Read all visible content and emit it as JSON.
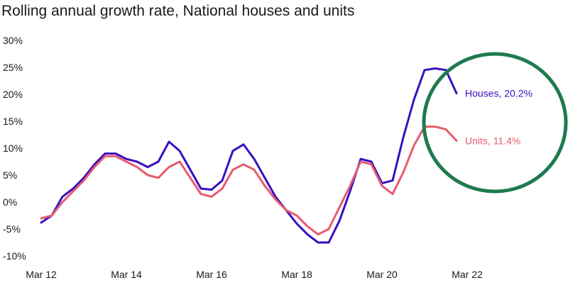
{
  "chart_data": {
    "type": "line",
    "title": "Rolling annual growth rate, National houses and units",
    "xlabel": "",
    "ylabel": "",
    "xlim": [
      2012.0,
      2022.7
    ],
    "ylim": [
      -10,
      30
    ],
    "yticks": [
      -10,
      -5,
      0,
      5,
      10,
      15,
      20,
      25,
      30
    ],
    "ytick_labels": [
      "-10%",
      "-5%",
      "0%",
      "5%",
      "10%",
      "15%",
      "20%",
      "25%",
      "30%"
    ],
    "xticks": [
      2012,
      2014,
      2016,
      2018,
      2020,
      2022
    ],
    "xtick_labels": [
      "Mar 12",
      "Mar 14",
      "Mar 16",
      "Mar 18",
      "Mar 20",
      "Mar 22"
    ],
    "grid": false,
    "legend": "inline end labels",
    "series": [
      {
        "name": "Houses",
        "end_label": "Houses, 20.2%",
        "color": "#3a0fc0",
        "x": [
          2012.0,
          2012.25,
          2012.5,
          2012.75,
          2013.0,
          2013.25,
          2013.5,
          2013.75,
          2014.0,
          2014.25,
          2014.5,
          2014.75,
          2015.0,
          2015.25,
          2015.5,
          2015.75,
          2016.0,
          2016.25,
          2016.5,
          2016.75,
          2017.0,
          2017.25,
          2017.5,
          2017.75,
          2018.0,
          2018.25,
          2018.5,
          2018.75,
          2019.0,
          2019.25,
          2019.5,
          2019.75,
          2020.0,
          2020.25,
          2020.5,
          2020.75,
          2021.0,
          2021.25,
          2021.5,
          2021.75,
          2022.0,
          2022.1,
          2022.25
        ],
        "y": [
          -3.8,
          -2.5,
          1.0,
          2.5,
          4.5,
          7.0,
          9.0,
          9.0,
          8.0,
          7.5,
          6.5,
          7.5,
          11.2,
          9.5,
          6.0,
          2.5,
          2.3,
          4.0,
          9.5,
          10.7,
          8.0,
          4.5,
          1.0,
          -1.5,
          -4.0,
          -6.0,
          -7.5,
          -7.5,
          -3.5,
          2.0,
          8.0,
          7.5,
          3.5,
          4.0,
          12.0,
          19.0,
          24.5,
          24.8,
          24.5,
          20.2,
          null,
          null,
          null
        ]
      },
      {
        "name": "Units",
        "end_label": "Units, 11.4%",
        "color": "#e55c6e",
        "x": [
          2012.0,
          2012.25,
          2012.5,
          2012.75,
          2013.0,
          2013.25,
          2013.5,
          2013.75,
          2014.0,
          2014.25,
          2014.5,
          2014.75,
          2015.0,
          2015.25,
          2015.5,
          2015.75,
          2016.0,
          2016.25,
          2016.5,
          2016.75,
          2017.0,
          2017.25,
          2017.5,
          2017.75,
          2018.0,
          2018.25,
          2018.5,
          2018.75,
          2019.0,
          2019.25,
          2019.5,
          2019.75,
          2020.0,
          2020.25,
          2020.5,
          2020.75,
          2021.0,
          2021.25,
          2021.5,
          2021.75
        ],
        "y": [
          -3.0,
          -2.5,
          0.0,
          2.0,
          4.0,
          6.5,
          8.5,
          8.5,
          7.5,
          6.5,
          5.0,
          4.5,
          6.5,
          7.5,
          4.5,
          1.5,
          1.0,
          2.5,
          6.0,
          7.0,
          6.0,
          3.0,
          0.5,
          -1.5,
          -2.5,
          -4.5,
          -6.0,
          -5.0,
          -1.0,
          3.0,
          7.5,
          7.0,
          3.0,
          1.5,
          5.5,
          10.5,
          14.0,
          14.0,
          13.5,
          11.4
        ]
      }
    ],
    "annotation": {
      "shape": "circle",
      "color": "#1f7a4f",
      "description": "highlight on recent peak"
    }
  }
}
